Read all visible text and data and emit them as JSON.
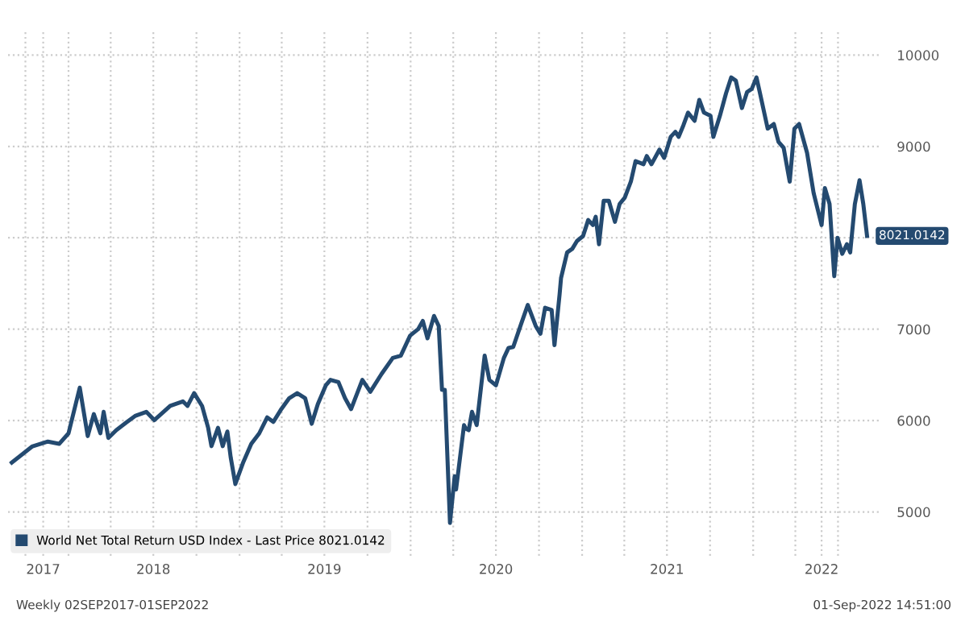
{
  "chart_data": {
    "type": "line",
    "x": [
      "2017-09-02",
      "2017-10-15",
      "2017-11-18",
      "2017-12-12",
      "2018-01-01",
      "2018-01-25",
      "2018-02-11",
      "2018-02-24",
      "2018-03-10",
      "2018-03-17",
      "2018-03-27",
      "2018-04-13",
      "2018-05-06",
      "2018-05-23",
      "2018-06-16",
      "2018-07-03",
      "2018-08-06",
      "2018-09-02",
      "2018-09-12",
      "2018-09-26",
      "2018-10-13",
      "2018-10-26",
      "2018-11-02",
      "2018-11-16",
      "2018-11-26",
      "2018-12-06",
      "2018-12-13",
      "2018-12-23",
      "2019-01-09",
      "2019-01-26",
      "2019-02-12",
      "2019-03-01",
      "2019-03-14",
      "2019-03-31",
      "2019-04-17",
      "2019-05-04",
      "2019-05-21",
      "2019-06-04",
      "2019-06-17",
      "2019-07-04",
      "2019-07-14",
      "2019-07-31",
      "2019-08-14",
      "2019-08-27",
      "2019-09-20",
      "2019-10-07",
      "2019-10-31",
      "2019-11-24",
      "2019-12-11",
      "2019-12-31",
      "2020-01-17",
      "2020-01-27",
      "2020-02-06",
      "2020-02-20",
      "2020-03-01",
      "2020-03-08",
      "2020-03-14",
      "2020-03-25",
      "2020-04-04",
      "2020-04-07",
      "2020-04-24",
      "2020-04-28",
      "2020-05-04",
      "2020-05-11",
      "2020-05-21",
      "2020-06-07",
      "2020-06-17",
      "2020-07-01",
      "2020-07-18",
      "2020-07-28",
      "2020-08-07",
      "2020-08-24",
      "2020-09-07",
      "2020-09-24",
      "2020-10-04",
      "2020-10-14",
      "2020-10-28",
      "2020-11-03",
      "2020-11-14",
      "2020-11-17",
      "2020-11-30",
      "2020-12-11",
      "2020-12-21",
      "2021-01-03",
      "2021-01-14",
      "2021-01-24",
      "2021-01-30",
      "2021-02-06",
      "2021-02-16",
      "2021-02-27",
      "2021-03-12",
      "2021-03-22",
      "2021-04-02",
      "2021-04-15",
      "2021-04-25",
      "2021-05-12",
      "2021-05-19",
      "2021-05-29",
      "2021-06-15",
      "2021-06-25",
      "2021-07-09",
      "2021-07-19",
      "2021-07-26",
      "2021-08-05",
      "2021-08-15",
      "2021-08-29",
      "2021-09-08",
      "2021-09-18",
      "2021-10-02",
      "2021-10-08",
      "2021-10-22",
      "2021-11-04",
      "2021-11-15",
      "2021-11-25",
      "2021-12-08",
      "2021-12-19",
      "2021-12-29",
      "2022-01-08",
      "2022-01-15",
      "2022-02-01",
      "2022-02-14",
      "2022-02-24",
      "2022-03-07",
      "2022-03-20",
      "2022-03-30",
      "2022-04-09",
      "2022-04-26",
      "2022-05-10",
      "2022-05-27",
      "2022-06-03",
      "2022-06-13",
      "2022-06-23",
      "2022-06-30",
      "2022-07-10",
      "2022-07-20",
      "2022-07-27",
      "2022-08-06",
      "2022-08-16",
      "2022-08-24",
      "2022-09-01"
    ],
    "series": [
      {
        "name": "World Net Total Return USD Index - Last Price 8021.0142",
        "color": "#244a70",
        "values": [
          5540,
          5715,
          5770,
          5745,
          5860,
          6360,
          5830,
          6070,
          5860,
          6095,
          5810,
          5895,
          5985,
          6050,
          6095,
          6005,
          6160,
          6210,
          6160,
          6300,
          6160,
          5920,
          5720,
          5920,
          5720,
          5880,
          5600,
          5305,
          5545,
          5745,
          5860,
          6035,
          5985,
          6125,
          6245,
          6300,
          6245,
          5965,
          6180,
          6385,
          6445,
          6420,
          6245,
          6125,
          6445,
          6315,
          6510,
          6685,
          6710,
          6930,
          7000,
          7090,
          6900,
          7145,
          7035,
          6335,
          6335,
          4880,
          5390,
          5245,
          5950,
          5910,
          5895,
          6095,
          5950,
          6710,
          6445,
          6385,
          6685,
          6795,
          6805,
          7060,
          7265,
          7035,
          6950,
          7235,
          7210,
          6825,
          7385,
          7560,
          7840,
          7880,
          7965,
          8020,
          8195,
          8140,
          8230,
          7930,
          8405,
          8405,
          8175,
          8370,
          8440,
          8615,
          8840,
          8805,
          8895,
          8805,
          8965,
          8875,
          9105,
          9160,
          9105,
          9230,
          9370,
          9280,
          9510,
          9370,
          9335,
          9105,
          9335,
          9580,
          9755,
          9720,
          9420,
          9595,
          9630,
          9755,
          9595,
          9195,
          9245,
          9050,
          8985,
          8615,
          9195,
          9245,
          8930,
          8490,
          8140,
          8545,
          8370,
          7580,
          8000,
          7825,
          7930,
          7840,
          8370,
          8630,
          8370,
          8021
        ]
      }
    ],
    "xlim": [
      "2017-08-25",
      "2022-09-26"
    ],
    "xticks": [
      {
        "value": "2017-10-01",
        "label": null
      },
      {
        "value": "2017-11-08",
        "label": "2017"
      },
      {
        "value": "2018-01-01",
        "label": null
      },
      {
        "value": "2018-04-01",
        "label": null
      },
      {
        "value": "2018-07-01",
        "label": "2018"
      },
      {
        "value": "2018-10-01",
        "label": null
      },
      {
        "value": "2019-01-01",
        "label": null
      },
      {
        "value": "2019-04-01",
        "label": null
      },
      {
        "value": "2019-07-01",
        "label": "2019"
      },
      {
        "value": "2019-10-01",
        "label": null
      },
      {
        "value": "2020-01-01",
        "label": null
      },
      {
        "value": "2020-04-01",
        "label": null
      },
      {
        "value": "2020-07-01",
        "label": "2020"
      },
      {
        "value": "2020-10-01",
        "label": null
      },
      {
        "value": "2021-01-01",
        "label": null
      },
      {
        "value": "2021-04-01",
        "label": null
      },
      {
        "value": "2021-07-01",
        "label": "2021"
      },
      {
        "value": "2021-10-01",
        "label": null
      },
      {
        "value": "2022-01-01",
        "label": null
      },
      {
        "value": "2022-04-01",
        "label": null
      },
      {
        "value": "2022-05-27",
        "label": "2022"
      },
      {
        "value": "2022-07-01",
        "label": null
      }
    ],
    "ylim": [
      4520,
      10250
    ],
    "yticks": [
      5000,
      6000,
      7000,
      {
        "value": 8000,
        "label": null
      },
      9000,
      10000
    ],
    "grid": true,
    "legend": "bottom left",
    "marker": "none",
    "line_style": "solid",
    "annotations": [
      {
        "text": "8021.0142",
        "x": "2022-09-01",
        "y": 8021
      },
      "Weekly 02SEP2017-01SEP2022",
      "01-Sep-2022 14:51:00"
    ]
  }
}
